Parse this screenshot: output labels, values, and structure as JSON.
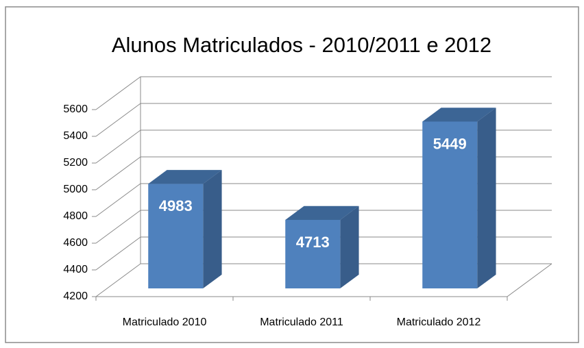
{
  "chart_data": {
    "type": "bar3d",
    "title": "Alunos Matriculados - 2010/2011 e 2012",
    "categories": [
      "Matriculado 2010",
      "Matriculado 2011",
      "Matriculado 2012"
    ],
    "values": [
      4983,
      4713,
      5449
    ],
    "color": "#4f81bd",
    "ylim": [
      4200,
      5600
    ],
    "yticks": [
      4200,
      4400,
      4600,
      4800,
      5000,
      5200,
      5400,
      5600
    ],
    "grid": true
  }
}
